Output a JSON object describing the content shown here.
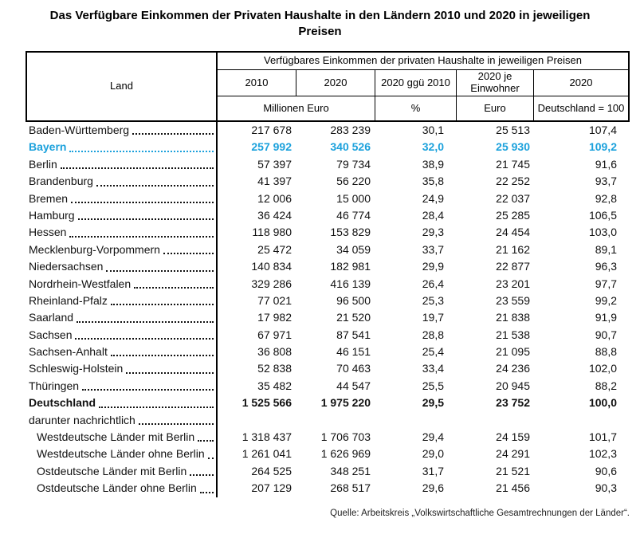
{
  "title": "Das Verfügbare Einkommen der Privaten Haushalte in den Ländern 2010 und 2020 in jeweiligen Preisen",
  "colors": {
    "highlight": "#1BA1DC"
  },
  "table": {
    "land_header": "Land",
    "group_header": "Verfügbares Einkommen der privaten Haushalte in jeweiligen Preisen",
    "columns": [
      "2010",
      "2020",
      "2020 ggü 2010",
      "2020 je Einwohner",
      "2020"
    ],
    "units": [
      "Millionen Euro",
      "%",
      "Euro",
      "Deutschland = 100"
    ],
    "rows": [
      {
        "land": "Baden-Württemberg",
        "values": [
          "217 678",
          "283 239",
          "30,1",
          "25 513",
          "107,4"
        ],
        "style": "normal",
        "indent": false
      },
      {
        "land": "Bayern",
        "values": [
          "257 992",
          "340 526",
          "32,0",
          "25 930",
          "109,2"
        ],
        "style": "highlight",
        "indent": false
      },
      {
        "land": "Berlin",
        "values": [
          "57 397",
          "79 734",
          "38,9",
          "21 745",
          "91,6"
        ],
        "style": "normal",
        "indent": false
      },
      {
        "land": "Brandenburg",
        "values": [
          "41 397",
          "56 220",
          "35,8",
          "22 252",
          "93,7"
        ],
        "style": "normal",
        "indent": false
      },
      {
        "land": "Bremen",
        "values": [
          "12 006",
          "15 000",
          "24,9",
          "22 037",
          "92,8"
        ],
        "style": "normal",
        "indent": false
      },
      {
        "land": "Hamburg",
        "values": [
          "36 424",
          "46 774",
          "28,4",
          "25 285",
          "106,5"
        ],
        "style": "normal",
        "indent": false
      },
      {
        "land": "Hessen",
        "values": [
          "118 980",
          "153 829",
          "29,3",
          "24 454",
          "103,0"
        ],
        "style": "normal",
        "indent": false
      },
      {
        "land": "Mecklenburg-Vorpommern",
        "values": [
          "25 472",
          "34 059",
          "33,7",
          "21 162",
          "89,1"
        ],
        "style": "normal",
        "indent": false
      },
      {
        "land": "Niedersachsen",
        "values": [
          "140 834",
          "182 981",
          "29,9",
          "22 877",
          "96,3"
        ],
        "style": "normal",
        "indent": false
      },
      {
        "land": "Nordrhein-Westfalen",
        "values": [
          "329 286",
          "416 139",
          "26,4",
          "23 201",
          "97,7"
        ],
        "style": "normal",
        "indent": false
      },
      {
        "land": "Rheinland-Pfalz",
        "values": [
          "77 021",
          "96 500",
          "25,3",
          "23 559",
          "99,2"
        ],
        "style": "normal",
        "indent": false
      },
      {
        "land": "Saarland",
        "values": [
          "17 982",
          "21 520",
          "19,7",
          "21 838",
          "91,9"
        ],
        "style": "normal",
        "indent": false
      },
      {
        "land": "Sachsen",
        "values": [
          "67 971",
          "87 541",
          "28,8",
          "21 538",
          "90,7"
        ],
        "style": "normal",
        "indent": false
      },
      {
        "land": "Sachsen-Anhalt",
        "values": [
          "36 808",
          "46 151",
          "25,4",
          "21 095",
          "88,8"
        ],
        "style": "normal",
        "indent": false
      },
      {
        "land": "Schleswig-Holstein",
        "values": [
          "52 838",
          "70 463",
          "33,4",
          "24 236",
          "102,0"
        ],
        "style": "normal",
        "indent": false
      },
      {
        "land": "Thüringen",
        "values": [
          "35 482",
          "44 547",
          "25,5",
          "20 945",
          "88,2"
        ],
        "style": "normal",
        "indent": false
      },
      {
        "land": "Deutschland",
        "values": [
          "1 525 566",
          "1 975 220",
          "29,5",
          "23 752",
          "100,0"
        ],
        "style": "bold",
        "indent": false
      },
      {
        "land": "darunter nachrichtlich",
        "values": [
          "",
          "",
          "",
          "",
          ""
        ],
        "style": "normal",
        "indent": false
      },
      {
        "land": "Westdeutsche Länder mit Berlin",
        "values": [
          "1 318 437",
          "1 706 703",
          "29,4",
          "24 159",
          "101,7"
        ],
        "style": "normal",
        "indent": true
      },
      {
        "land": "Westdeutsche Länder ohne Berlin",
        "values": [
          "1 261 041",
          "1 626 969",
          "29,0",
          "24 291",
          "102,3"
        ],
        "style": "normal",
        "indent": true
      },
      {
        "land": "Ostdeutsche Länder mit Berlin",
        "values": [
          "264 525",
          "348 251",
          "31,7",
          "21 521",
          "90,6"
        ],
        "style": "normal",
        "indent": true
      },
      {
        "land": "Ostdeutsche Länder ohne Berlin",
        "values": [
          "207 129",
          "268 517",
          "29,6",
          "21 456",
          "90,3"
        ],
        "style": "normal",
        "indent": true
      }
    ]
  },
  "source": "Quelle: Arbeitskreis „Volkswirtschaftliche Gesamtrechnungen der Länder“."
}
